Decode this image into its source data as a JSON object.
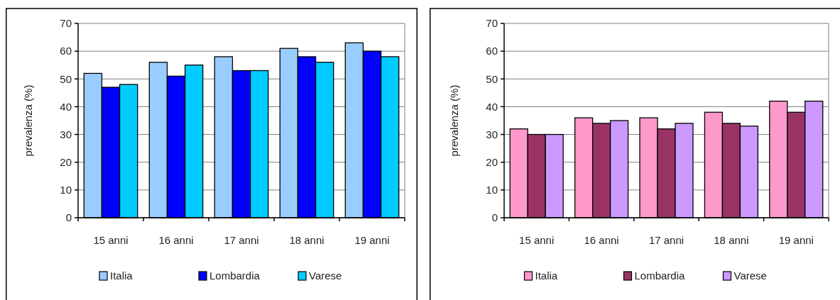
{
  "chart_data": [
    {
      "type": "bar",
      "ylabel": "prevalenza  (%)",
      "categories": [
        "15 anni",
        "16 anni",
        "17 anni",
        "18 anni",
        "19 anni"
      ],
      "series": [
        {
          "name": "Italia",
          "color": "#99ccff",
          "values": [
            52,
            56,
            58,
            61,
            63
          ]
        },
        {
          "name": "Lombardia",
          "color": "#0000ff",
          "values": [
            47,
            51,
            53,
            58,
            60
          ]
        },
        {
          "name": "Varese",
          "color": "#00ccff",
          "values": [
            48,
            55,
            53,
            56,
            58
          ]
        }
      ],
      "ylim": [
        0,
        70
      ],
      "yticks": [
        0,
        10,
        20,
        30,
        40,
        50,
        60,
        70
      ],
      "grid": "y",
      "legend": "bottom"
    },
    {
      "type": "bar",
      "ylabel": "prevalenza  (%)",
      "categories": [
        "15 anni",
        "16 anni",
        "17 anni",
        "18 anni",
        "19 anni"
      ],
      "series": [
        {
          "name": "Italia",
          "color": "#ff99cc",
          "values": [
            32,
            36,
            36,
            38,
            42
          ]
        },
        {
          "name": "Lombardia",
          "color": "#993366",
          "values": [
            30,
            34,
            32,
            34,
            38
          ]
        },
        {
          "name": "Varese",
          "color": "#cc99ff",
          "values": [
            30,
            35,
            34,
            33,
            42
          ]
        }
      ],
      "ylim": [
        0,
        70
      ],
      "yticks": [
        0,
        10,
        20,
        30,
        40,
        50,
        60,
        70
      ],
      "grid": "y",
      "legend": "bottom"
    }
  ]
}
